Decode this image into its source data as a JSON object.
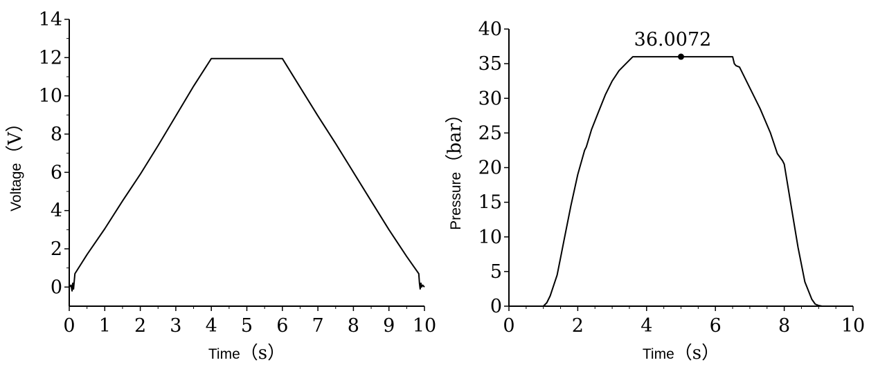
{
  "chart_data": [
    {
      "type": "line",
      "xlabel": "Time",
      "xunit": "（s）",
      "ylabel": "Voltage",
      "yunit": "（V）",
      "xlim": [
        0,
        10
      ],
      "ylim": [
        -1,
        14
      ],
      "x_ticks": [
        0,
        1,
        2,
        3,
        4,
        5,
        6,
        7,
        8,
        9,
        10
      ],
      "y_ticks": [
        0,
        2,
        4,
        6,
        8,
        10,
        12,
        14
      ],
      "grid": false,
      "series": [
        {
          "x": [
            0,
            0.05,
            0.08,
            0.1,
            0.12,
            0.14,
            0.16,
            0.5,
            1,
            1.5,
            2,
            2.5,
            3,
            3.5,
            4,
            4.5,
            5,
            5.5,
            6,
            6.5,
            7,
            7.5,
            8,
            8.5,
            9,
            9.5,
            9.84,
            9.86,
            9.88,
            9.9,
            9.92,
            9.95,
            10
          ],
          "y": [
            0,
            0.1,
            -0.2,
            0.2,
            -0.1,
            0.3,
            0.7,
            1.7,
            3.05,
            4.5,
            5.9,
            7.4,
            8.95,
            10.5,
            11.95,
            11.95,
            11.95,
            11.95,
            11.95,
            10.45,
            8.95,
            7.5,
            6.0,
            4.5,
            3.0,
            1.6,
            0.7,
            0.2,
            -0.1,
            0.2,
            0.0,
            0.1,
            0
          ]
        }
      ]
    },
    {
      "type": "line",
      "xlabel": "Time",
      "xunit": "（s）",
      "ylabel": "Pressure",
      "yunit": "（bar）",
      "xlim": [
        0,
        10
      ],
      "ylim": [
        0,
        40
      ],
      "x_ticks": [
        0,
        2,
        4,
        6,
        8,
        10
      ],
      "y_ticks": [
        0,
        5,
        10,
        15,
        20,
        25,
        30,
        35,
        40
      ],
      "grid": false,
      "annotations": [
        {
          "text": "36.0072",
          "x": 5.0,
          "y": 36.0072
        }
      ],
      "series": [
        {
          "x": [
            0,
            1.0,
            1.1,
            1.2,
            1.3,
            1.4,
            1.5,
            1.6,
            1.8,
            2.0,
            2.2,
            2.25,
            2.4,
            2.6,
            2.8,
            3.0,
            3.2,
            3.4,
            3.6,
            3.7,
            4.0,
            4.5,
            5.0,
            5.5,
            6.0,
            6.5,
            6.55,
            6.6,
            6.7,
            7.0,
            7.3,
            7.6,
            7.8,
            7.95,
            8.0,
            8.2,
            8.4,
            8.6,
            8.8,
            8.9,
            9.0,
            9.1,
            10
          ],
          "y": [
            0,
            0,
            0.5,
            1.5,
            3.0,
            4.5,
            7.0,
            9.5,
            14.5,
            19.0,
            22.5,
            23.0,
            25.5,
            28.0,
            30.5,
            32.5,
            34.0,
            35.0,
            36.0,
            36.0,
            36.0,
            36.0,
            36.0,
            36.0,
            36.0,
            36.0,
            35.0,
            34.7,
            34.5,
            31.5,
            28.5,
            25.0,
            22.0,
            21.0,
            20.5,
            14.5,
            8.5,
            3.5,
            1.0,
            0.3,
            0.1,
            0,
            0
          ]
        }
      ]
    }
  ]
}
